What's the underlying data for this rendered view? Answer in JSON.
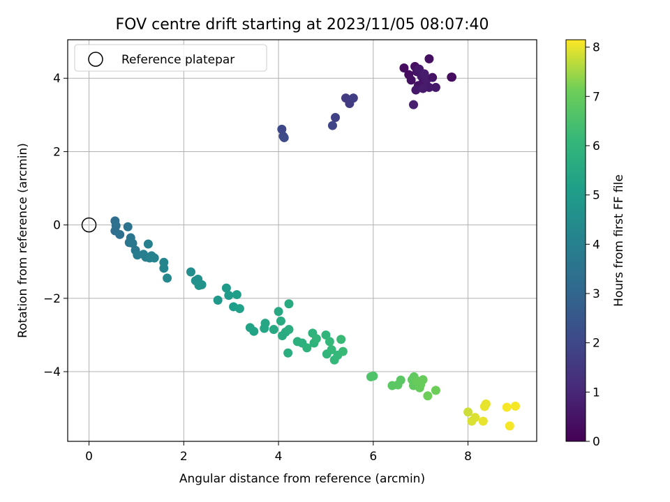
{
  "chart_data": {
    "type": "scatter",
    "title": "FOV centre drift starting at 2023/11/05 08:07:40",
    "xlabel": "Angular distance from reference (arcmin)",
    "ylabel": "Rotation from reference (arcmin)",
    "xlim": [
      -0.45,
      9.45
    ],
    "ylim": [
      -5.9,
      5.05
    ],
    "xticks": [
      0,
      2,
      4,
      6,
      8
    ],
    "yticks": [
      -4,
      -2,
      0,
      2,
      4
    ],
    "grid": true,
    "legend": {
      "placement": "upper-left",
      "entries": [
        "Reference platepar"
      ]
    },
    "reference_point": {
      "x": 0,
      "y": 0
    },
    "colorbar": {
      "label": "Hours from first FF file",
      "range": [
        0,
        8.15
      ],
      "ticks": [
        0,
        1,
        2,
        3,
        4,
        5,
        6,
        7,
        8
      ],
      "colormap": "viridis"
    },
    "points": [
      {
        "x": 6.65,
        "y": 4.28,
        "c": 0.3
      },
      {
        "x": 6.75,
        "y": 4.1,
        "c": 0.3
      },
      {
        "x": 6.8,
        "y": 3.95,
        "c": 0.4
      },
      {
        "x": 6.88,
        "y": 4.32,
        "c": 0.4
      },
      {
        "x": 6.92,
        "y": 4.18,
        "c": 0.5
      },
      {
        "x": 6.95,
        "y": 3.8,
        "c": 0.5
      },
      {
        "x": 6.97,
        "y": 4.25,
        "c": 0.6
      },
      {
        "x": 7.02,
        "y": 4.05,
        "c": 0.6
      },
      {
        "x": 7.05,
        "y": 3.88,
        "c": 0.5
      },
      {
        "x": 7.08,
        "y": 4.12,
        "c": 0.7
      },
      {
        "x": 7.12,
        "y": 3.95,
        "c": 0.7
      },
      {
        "x": 6.9,
        "y": 3.68,
        "c": 0.6
      },
      {
        "x": 6.85,
        "y": 3.28,
        "c": 0.8
      },
      {
        "x": 7.18,
        "y": 4.53,
        "c": 0.4
      },
      {
        "x": 7.25,
        "y": 4.02,
        "c": 0.5
      },
      {
        "x": 7.18,
        "y": 3.75,
        "c": 0.6
      },
      {
        "x": 7.32,
        "y": 3.75,
        "c": 0.6
      },
      {
        "x": 7.65,
        "y": 4.03,
        "c": 0.2
      },
      {
        "x": 7.66,
        "y": 4.03,
        "c": 0.3
      },
      {
        "x": 7.05,
        "y": 3.72,
        "c": 0.7
      },
      {
        "x": 5.42,
        "y": 3.46,
        "c": 1.6
      },
      {
        "x": 5.5,
        "y": 3.31,
        "c": 1.6
      },
      {
        "x": 5.58,
        "y": 3.46,
        "c": 1.7
      },
      {
        "x": 5.2,
        "y": 2.93,
        "c": 1.8
      },
      {
        "x": 5.14,
        "y": 2.71,
        "c": 1.9
      },
      {
        "x": 4.07,
        "y": 2.61,
        "c": 2.0
      },
      {
        "x": 4.1,
        "y": 2.42,
        "c": 2.1
      },
      {
        "x": 4.12,
        "y": 2.38,
        "c": 2.1
      },
      {
        "x": 0.55,
        "y": 0.11,
        "c": 3.3
      },
      {
        "x": 0.57,
        "y": -0.02,
        "c": 3.4
      },
      {
        "x": 0.55,
        "y": -0.16,
        "c": 3.3
      },
      {
        "x": 0.65,
        "y": -0.26,
        "c": 3.4
      },
      {
        "x": 0.82,
        "y": -0.05,
        "c": 3.5
      },
      {
        "x": 0.88,
        "y": -0.35,
        "c": 3.6
      },
      {
        "x": 0.85,
        "y": -0.48,
        "c": 3.6
      },
      {
        "x": 0.92,
        "y": -0.5,
        "c": 3.7
      },
      {
        "x": 0.98,
        "y": -0.69,
        "c": 3.7
      },
      {
        "x": 1.02,
        "y": -0.82,
        "c": 3.8
      },
      {
        "x": 1.15,
        "y": -0.8,
        "c": 3.9
      },
      {
        "x": 1.2,
        "y": -0.88,
        "c": 3.9
      },
      {
        "x": 1.25,
        "y": -0.52,
        "c": 4.0
      },
      {
        "x": 1.28,
        "y": -0.9,
        "c": 4.0
      },
      {
        "x": 1.32,
        "y": -0.84,
        "c": 4.1
      },
      {
        "x": 1.38,
        "y": -0.9,
        "c": 4.1
      },
      {
        "x": 1.58,
        "y": -1.02,
        "c": 4.2
      },
      {
        "x": 1.58,
        "y": -1.18,
        "c": 4.2
      },
      {
        "x": 1.65,
        "y": -1.45,
        "c": 4.3
      },
      {
        "x": 2.15,
        "y": -1.28,
        "c": 4.5
      },
      {
        "x": 2.25,
        "y": -1.52,
        "c": 4.6
      },
      {
        "x": 2.3,
        "y": -1.48,
        "c": 4.6
      },
      {
        "x": 2.32,
        "y": -1.65,
        "c": 4.7
      },
      {
        "x": 2.38,
        "y": -1.63,
        "c": 4.7
      },
      {
        "x": 2.72,
        "y": -2.05,
        "c": 4.9
      },
      {
        "x": 2.9,
        "y": -1.72,
        "c": 5.0
      },
      {
        "x": 2.95,
        "y": -1.92,
        "c": 5.0
      },
      {
        "x": 3.05,
        "y": -2.23,
        "c": 5.1
      },
      {
        "x": 3.12,
        "y": -1.9,
        "c": 5.1
      },
      {
        "x": 3.18,
        "y": -2.28,
        "c": 5.2
      },
      {
        "x": 3.4,
        "y": -2.8,
        "c": 5.3
      },
      {
        "x": 3.48,
        "y": -2.9,
        "c": 5.3
      },
      {
        "x": 3.7,
        "y": -2.82,
        "c": 5.4
      },
      {
        "x": 3.72,
        "y": -2.68,
        "c": 5.4
      },
      {
        "x": 3.9,
        "y": -2.85,
        "c": 5.5
      },
      {
        "x": 4.0,
        "y": -2.36,
        "c": 5.5
      },
      {
        "x": 4.05,
        "y": -2.62,
        "c": 5.6
      },
      {
        "x": 4.08,
        "y": -3.02,
        "c": 5.6
      },
      {
        "x": 4.15,
        "y": -2.92,
        "c": 5.6
      },
      {
        "x": 4.22,
        "y": -2.85,
        "c": 5.7
      },
      {
        "x": 4.22,
        "y": -2.15,
        "c": 5.6
      },
      {
        "x": 4.2,
        "y": -3.49,
        "c": 5.7
      },
      {
        "x": 4.4,
        "y": -3.18,
        "c": 5.8
      },
      {
        "x": 4.5,
        "y": -3.22,
        "c": 5.8
      },
      {
        "x": 4.6,
        "y": -3.35,
        "c": 5.9
      },
      {
        "x": 4.72,
        "y": -2.95,
        "c": 5.9
      },
      {
        "x": 4.75,
        "y": -3.22,
        "c": 5.9
      },
      {
        "x": 4.8,
        "y": -3.1,
        "c": 6.0
      },
      {
        "x": 5.0,
        "y": -3.0,
        "c": 6.0
      },
      {
        "x": 5.02,
        "y": -3.52,
        "c": 6.0
      },
      {
        "x": 5.08,
        "y": -3.18,
        "c": 6.1
      },
      {
        "x": 5.12,
        "y": -3.4,
        "c": 6.1
      },
      {
        "x": 5.18,
        "y": -3.68,
        "c": 6.1
      },
      {
        "x": 5.25,
        "y": -3.55,
        "c": 6.1
      },
      {
        "x": 5.32,
        "y": -3.12,
        "c": 6.2
      },
      {
        "x": 5.36,
        "y": -3.45,
        "c": 6.2
      },
      {
        "x": 5.95,
        "y": -4.14,
        "c": 6.6
      },
      {
        "x": 6.0,
        "y": -4.12,
        "c": 6.6
      },
      {
        "x": 6.4,
        "y": -4.38,
        "c": 6.8
      },
      {
        "x": 6.52,
        "y": -4.36,
        "c": 6.8
      },
      {
        "x": 6.58,
        "y": -4.23,
        "c": 6.8
      },
      {
        "x": 6.82,
        "y": -4.22,
        "c": 6.9
      },
      {
        "x": 6.86,
        "y": -4.14,
        "c": 6.9
      },
      {
        "x": 6.85,
        "y": -4.38,
        "c": 6.9
      },
      {
        "x": 6.92,
        "y": -4.25,
        "c": 7.0
      },
      {
        "x": 6.98,
        "y": -4.44,
        "c": 7.0
      },
      {
        "x": 7.05,
        "y": -4.22,
        "c": 7.0
      },
      {
        "x": 7.0,
        "y": -4.35,
        "c": 7.0
      },
      {
        "x": 7.15,
        "y": -4.66,
        "c": 7.1
      },
      {
        "x": 7.32,
        "y": -4.51,
        "c": 7.1
      },
      {
        "x": 8.0,
        "y": -5.1,
        "c": 7.8
      },
      {
        "x": 8.08,
        "y": -5.35,
        "c": 7.9
      },
      {
        "x": 8.15,
        "y": -5.25,
        "c": 7.9
      },
      {
        "x": 8.32,
        "y": -5.35,
        "c": 8.0
      },
      {
        "x": 8.35,
        "y": -4.95,
        "c": 8.0
      },
      {
        "x": 8.38,
        "y": -4.88,
        "c": 8.0
      },
      {
        "x": 8.82,
        "y": -4.97,
        "c": 8.1
      },
      {
        "x": 8.88,
        "y": -5.48,
        "c": 8.1
      },
      {
        "x": 9.0,
        "y": -4.94,
        "c": 8.1
      }
    ]
  }
}
